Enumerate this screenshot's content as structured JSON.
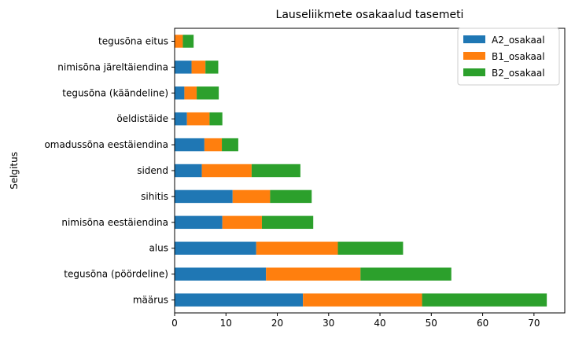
{
  "chart_data": {
    "type": "bar",
    "orientation": "horizontal",
    "stacked": true,
    "title": "Lauseliikmete osakaalud tasemeti",
    "xlabel": "",
    "ylabel": "Selgitus",
    "xlim": [
      0,
      76
    ],
    "xticks": [
      0,
      10,
      20,
      30,
      40,
      50,
      60,
      70
    ],
    "grid": false,
    "legend_position": "top-right",
    "categories": [
      "määrus",
      "tegusõna (pöördeline)",
      "alus",
      "nimisõna eestäiendina",
      "sihitis",
      "sidend",
      "omadussõna eestäiendina",
      "öeldistäide",
      "tegusõna (käändeline)",
      "nimisõna järeltäiendina",
      "tegusõna eitus"
    ],
    "series": [
      {
        "name": "A2_osakaal",
        "color": "#1f77b4",
        "values": [
          25.0,
          17.8,
          15.9,
          9.3,
          11.3,
          5.3,
          5.8,
          2.4,
          1.9,
          3.3,
          0.0
        ]
      },
      {
        "name": "B1_osakaal",
        "color": "#ff7f0e",
        "values": [
          23.2,
          18.4,
          15.9,
          7.7,
          7.3,
          9.7,
          3.4,
          4.4,
          2.4,
          2.7,
          1.6
        ]
      },
      {
        "name": "B2_osakaal",
        "color": "#2ca02c",
        "values": [
          24.3,
          17.7,
          12.7,
          10.0,
          8.1,
          9.5,
          3.2,
          2.5,
          4.3,
          2.5,
          2.1
        ]
      }
    ]
  }
}
